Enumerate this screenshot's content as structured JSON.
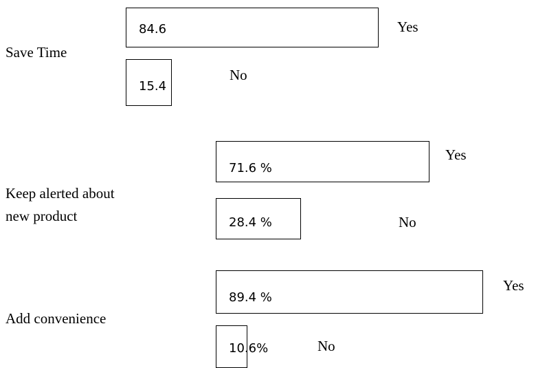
{
  "chart_data": {
    "type": "bar",
    "orientation": "horizontal",
    "title": "",
    "xlabel": "",
    "ylabel": "",
    "grid": false,
    "legend": "none",
    "answers": [
      "Yes",
      "No"
    ],
    "categories": [
      {
        "label_lines": [
          "Save Time"
        ],
        "yes": 84.6,
        "yes_label": "84.6",
        "no": 15.4,
        "no_label": "15.4"
      },
      {
        "label_lines": [
          "Keep alerted about",
          "new product"
        ],
        "yes": 71.6,
        "yes_label": "71.6 %",
        "no": 28.4,
        "no_label": "28.4 %"
      },
      {
        "label_lines": [
          "Add convenience"
        ],
        "yes": 89.4,
        "yes_label": "89.4 %",
        "no": 10.6,
        "no_label": "10.6%"
      }
    ]
  }
}
